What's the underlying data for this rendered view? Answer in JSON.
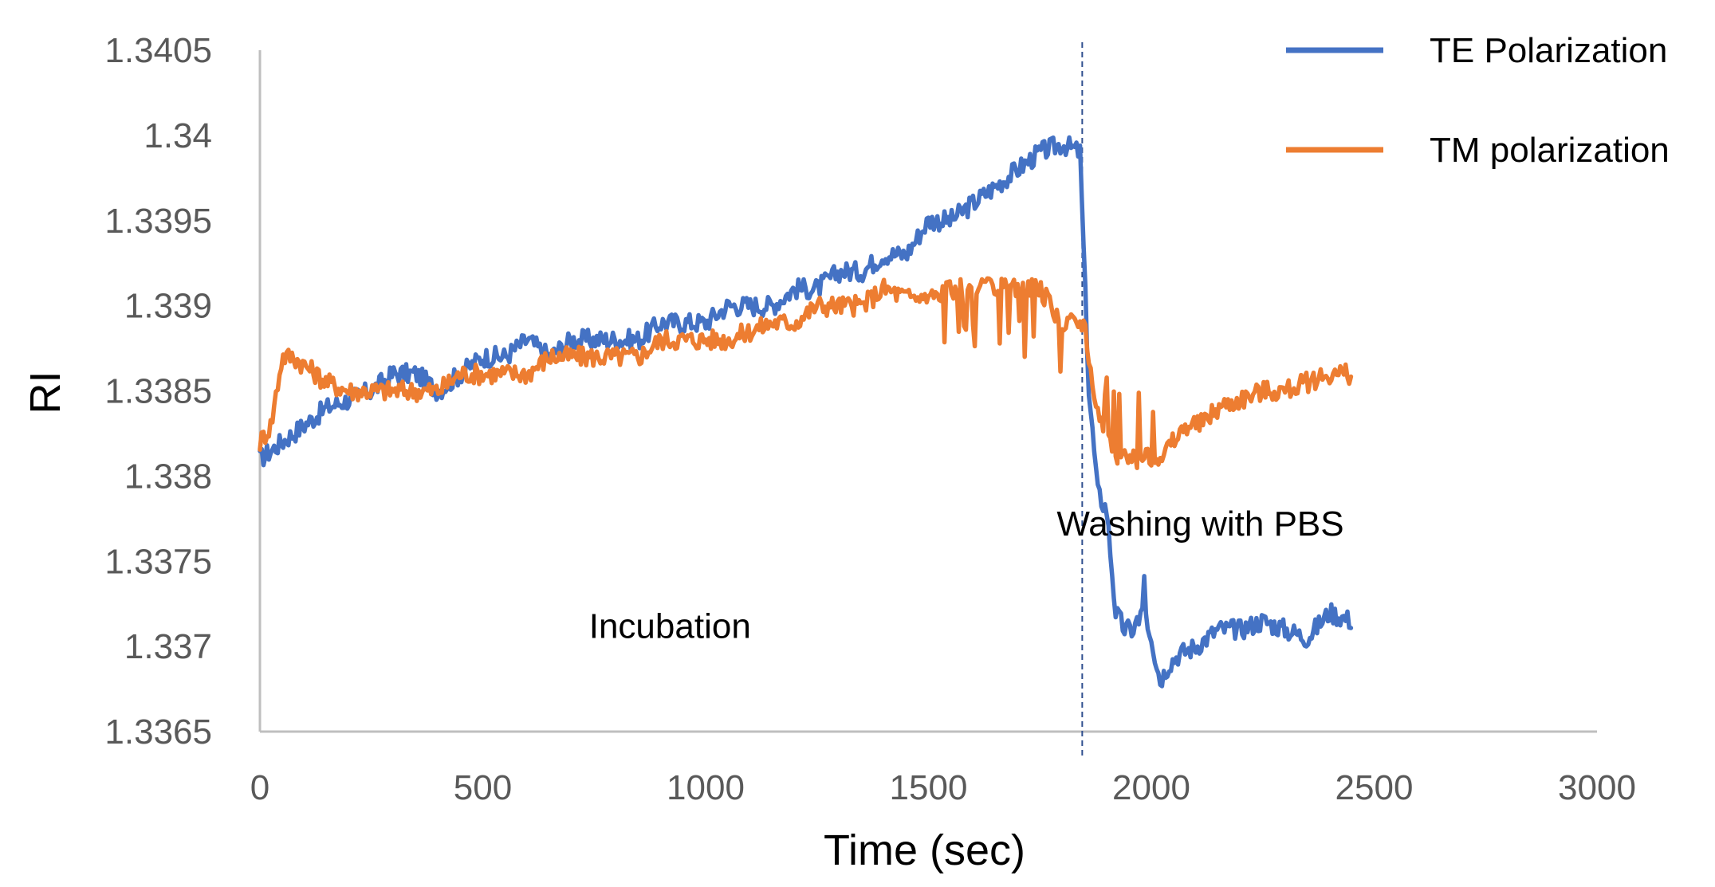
{
  "chart_data": {
    "type": "line",
    "title": "",
    "xlabel": "Time (sec)",
    "ylabel": "RI",
    "xlim": [
      0,
      3000
    ],
    "ylim": [
      1.3365,
      1.3405
    ],
    "x_ticks": [
      0,
      500,
      1000,
      1500,
      2000,
      2500,
      3000
    ],
    "y_ticks": [
      1.3365,
      1.337,
      1.3375,
      1.338,
      1.3385,
      1.339,
      1.3395,
      1.34,
      1.3405
    ],
    "x_tick_labels": [
      "0",
      "500",
      "1000",
      "1500",
      "2000",
      "2500",
      "3000"
    ],
    "y_tick_labels": [
      "1.3365",
      "1.337",
      "1.3375",
      "1.338",
      "1.3385",
      "1.339",
      "1.3395",
      "1.34",
      "1.3405"
    ],
    "grid": false,
    "legend_position": "top-right",
    "series": [
      {
        "name": "TE Polarization",
        "color": "#4472C4",
        "x": [
          0,
          50,
          100,
          150,
          200,
          250,
          300,
          350,
          400,
          450,
          500,
          550,
          600,
          650,
          700,
          750,
          800,
          850,
          900,
          950,
          1000,
          1050,
          1100,
          1150,
          1200,
          1250,
          1300,
          1350,
          1400,
          1450,
          1500,
          1550,
          1600,
          1650,
          1700,
          1750,
          1800,
          1840,
          1860,
          1880,
          1900,
          1920,
          1940,
          1960,
          1980,
          2000,
          2020,
          2040,
          2060,
          2100,
          2150,
          2200,
          2250,
          2300,
          2350,
          2400,
          2450
        ],
        "values": [
          1.3381,
          1.3382,
          1.3383,
          1.3384,
          1.33845,
          1.3385,
          1.3386,
          1.3386,
          1.3385,
          1.3386,
          1.3387,
          1.3387,
          1.3388,
          1.3387,
          1.3388,
          1.3388,
          1.3388,
          1.3388,
          1.3389,
          1.3389,
          1.3389,
          1.339,
          1.339,
          1.339,
          1.3391,
          1.3391,
          1.3392,
          1.3392,
          1.3393,
          1.3393,
          1.3395,
          1.3395,
          1.3396,
          1.3397,
          1.3398,
          1.3399,
          1.33995,
          1.3399,
          1.3385,
          1.3379,
          1.3378,
          1.3372,
          1.3371,
          1.3371,
          1.3372,
          1.33705,
          1.3368,
          1.3369,
          1.33695,
          1.337,
          1.3371,
          1.3371,
          1.33715,
          1.3371,
          1.33705,
          1.3372,
          1.33715
        ]
      },
      {
        "name": "TM polarization",
        "color": "#ED7D31",
        "x": [
          0,
          25,
          50,
          75,
          100,
          150,
          200,
          250,
          300,
          350,
          400,
          450,
          500,
          550,
          600,
          650,
          700,
          750,
          800,
          850,
          900,
          950,
          1000,
          1050,
          1100,
          1150,
          1200,
          1250,
          1300,
          1350,
          1400,
          1450,
          1500,
          1550,
          1600,
          1650,
          1700,
          1750,
          1800,
          1850,
          1870,
          1890,
          1910,
          1930,
          1950,
          1970,
          1990,
          2010,
          2030,
          2050,
          2080,
          2110,
          2150,
          2200,
          2250,
          2300,
          2350,
          2400,
          2450
        ],
        "values": [
          1.3382,
          1.3383,
          1.3387,
          1.3387,
          1.33865,
          1.33855,
          1.3385,
          1.3385,
          1.3385,
          1.3385,
          1.3385,
          1.3386,
          1.3386,
          1.3386,
          1.3386,
          1.3387,
          1.3387,
          1.3387,
          1.3387,
          1.3387,
          1.3388,
          1.3388,
          1.3388,
          1.3388,
          1.33885,
          1.3389,
          1.3389,
          1.339,
          1.339,
          1.339,
          1.3391,
          1.33905,
          1.33905,
          1.3391,
          1.3391,
          1.3391,
          1.3391,
          1.3391,
          1.3389,
          1.3389,
          1.3385,
          1.3383,
          1.3382,
          1.3381,
          1.3381,
          1.3381,
          1.3381,
          1.3381,
          1.33815,
          1.3382,
          1.3383,
          1.3383,
          1.3384,
          1.33845,
          1.3385,
          1.3385,
          1.33855,
          1.3386,
          1.3386
        ]
      }
    ],
    "annotations": [
      {
        "text": "Incubation",
        "x": 920,
        "y": 1.33705
      },
      {
        "text": "Washing with PBS",
        "x": 2110,
        "y": 1.33765
      }
    ],
    "reference_lines": [
      {
        "orientation": "vertical",
        "x": 1845,
        "style": "dashed",
        "color": "#2F4F8F"
      }
    ]
  }
}
